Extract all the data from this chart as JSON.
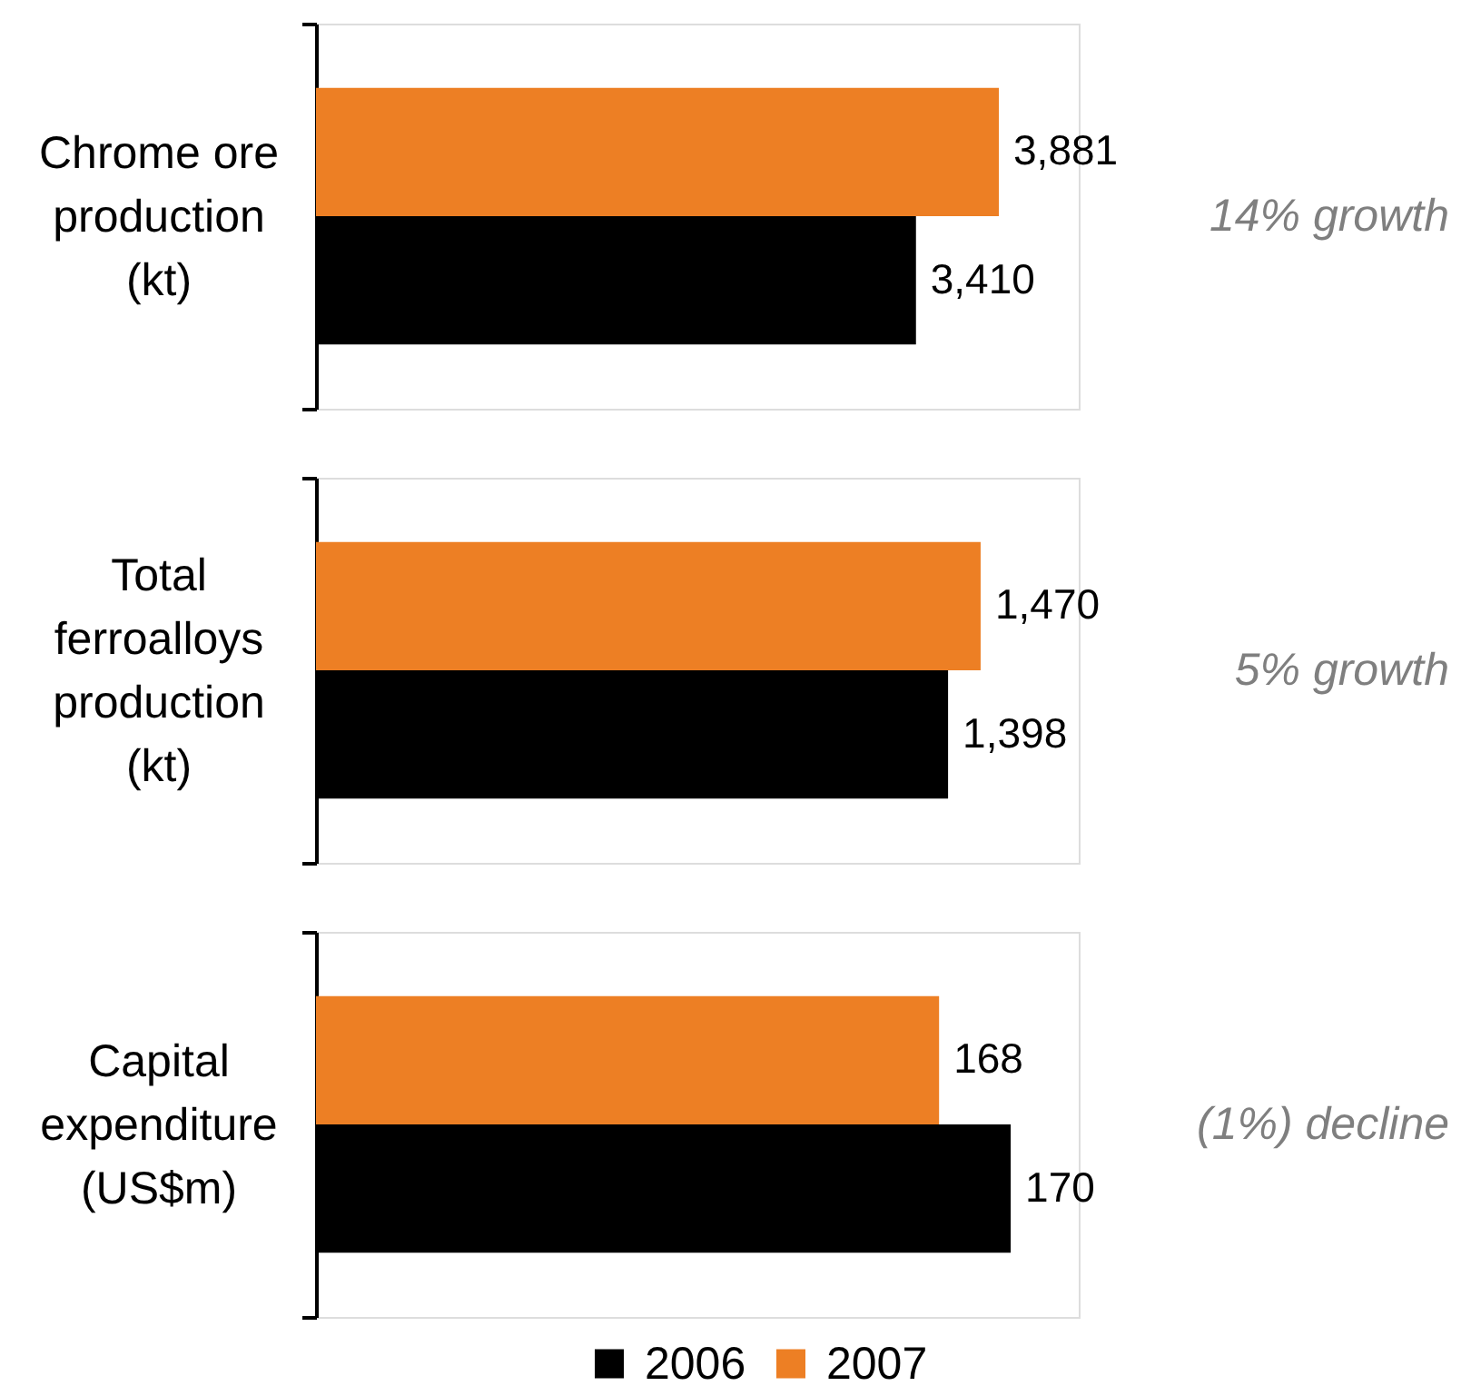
{
  "chart_data": [
    {
      "type": "bar",
      "orientation": "horizontal",
      "categories": [
        "Chrome ore production (kt)"
      ],
      "series": [
        {
          "color": "#000000",
          "values": [
            3410
          ],
          "value_labels": [
            "3,410"
          ]
        },
        {
          "color": "#ed7f24",
          "values": [
            3881
          ],
          "value_labels": [
            "3,881"
          ]
        }
      ],
      "xlim": [
        0,
        4335
      ],
      "tick_labels": "y",
      "annotations": [
        "14% growth"
      ]
    },
    {
      "type": "bar",
      "orientation": "horizontal",
      "categories": [
        "Total ferroalloys production (kt)"
      ],
      "series": [
        {
          "color": "#000000",
          "values": [
            1398
          ],
          "value_labels": [
            "1,398"
          ]
        },
        {
          "color": "#ed7f24",
          "values": [
            1470
          ],
          "value_labels": [
            "1,470"
          ]
        }
      ],
      "xlim": [
        0,
        1687
      ],
      "tick_labels": "y",
      "annotations": [
        "5% growth"
      ]
    },
    {
      "type": "bar",
      "orientation": "horizontal",
      "categories": [
        "Capital expenditure (US$m)"
      ],
      "series": [
        {
          "name": "2006",
          "color": "#000000",
          "values": [
            170
          ],
          "value_labels": [
            "170"
          ]
        },
        {
          "name": "2007",
          "color": "#ed7f24",
          "values": [
            168
          ],
          "value_labels": [
            "168"
          ]
        }
      ],
      "xlim": [
        150.6,
        171.9
      ],
      "tick_labels": "y",
      "annotations": [
        "(1%) decline"
      ],
      "legend": "bottom"
    }
  ]
}
